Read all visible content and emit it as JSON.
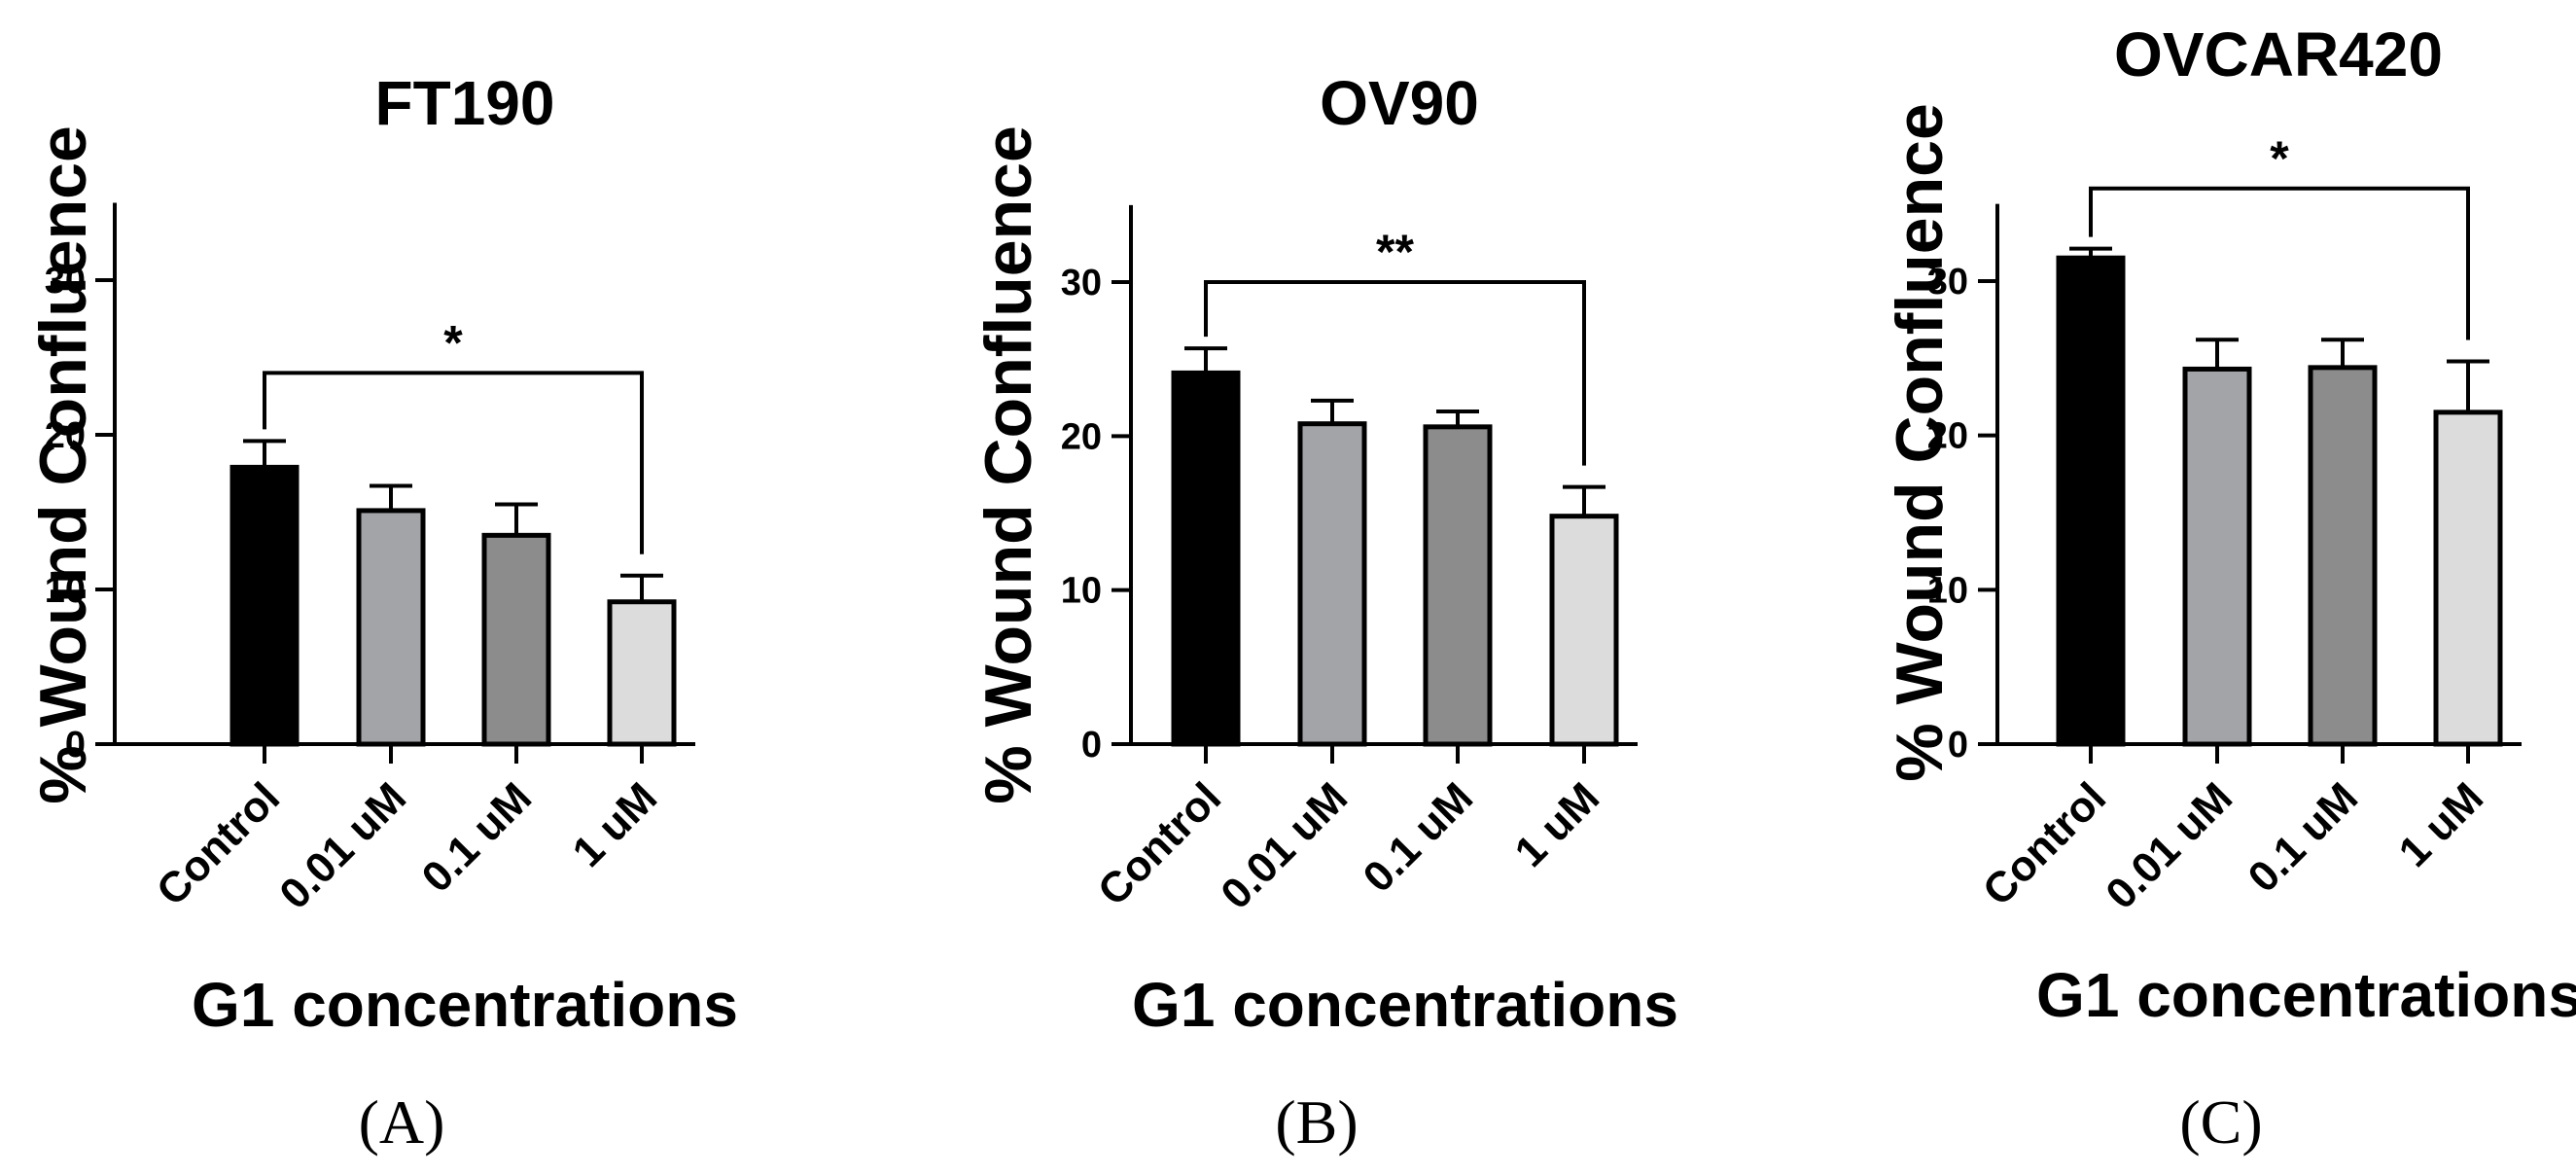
{
  "chart_data": [
    {
      "type": "bar",
      "title": "FT190",
      "ylabel": "% Wound Confluence",
      "xlabel": "G1 concentrations",
      "panel_label": "(A)",
      "categories": [
        "Control",
        "0.01 uM",
        "0.1 uM",
        "1 uM"
      ],
      "values": [
        17.9,
        15.1,
        13.5,
        9.2
      ],
      "errors": [
        1.7,
        1.6,
        2.0,
        1.7
      ],
      "colors": [
        "#000000",
        "#a3a4a8",
        "#8c8c8c",
        "#dcdcdc"
      ],
      "ylim": [
        0,
        35
      ],
      "yticks": [
        0,
        10,
        20,
        30
      ],
      "significance": {
        "from": 0,
        "to": 3,
        "label": "*",
        "y": 24
      }
    },
    {
      "type": "bar",
      "title": "OV90",
      "ylabel": "% Wound Confluence",
      "xlabel": "G1 concentrations",
      "panel_label": "(B)",
      "categories": [
        "Control",
        "0.01 uM",
        "0.1 uM",
        "1 uM"
      ],
      "values": [
        24.1,
        20.8,
        20.6,
        14.8
      ],
      "errors": [
        1.6,
        1.5,
        1.0,
        1.9
      ],
      "colors": [
        "#000000",
        "#a3a4a8",
        "#8c8c8c",
        "#dcdcdc"
      ],
      "ylim": [
        0,
        35
      ],
      "yticks": [
        0,
        10,
        20,
        30
      ],
      "significance": {
        "from": 0,
        "to": 3,
        "label": "**",
        "y": 30
      }
    },
    {
      "type": "bar",
      "title": "OVCAR420",
      "ylabel": "% Wound  Confluence",
      "xlabel": "G1 concentrations",
      "panel_label": "(C)",
      "categories": [
        "Control",
        "0.01 uM",
        "0.1 uM",
        "1 uM"
      ],
      "values": [
        31.5,
        24.3,
        24.4,
        21.5
      ],
      "errors": [
        0.6,
        1.9,
        1.8,
        3.3
      ],
      "colors": [
        "#000000",
        "#a3a4a8",
        "#8c8c8c",
        "#dcdcdc"
      ],
      "ylim": [
        0,
        35
      ],
      "yticks": [
        0,
        10,
        20,
        30
      ],
      "significance": {
        "from": 0,
        "to": 3,
        "label": "*",
        "y": 36
      }
    }
  ]
}
